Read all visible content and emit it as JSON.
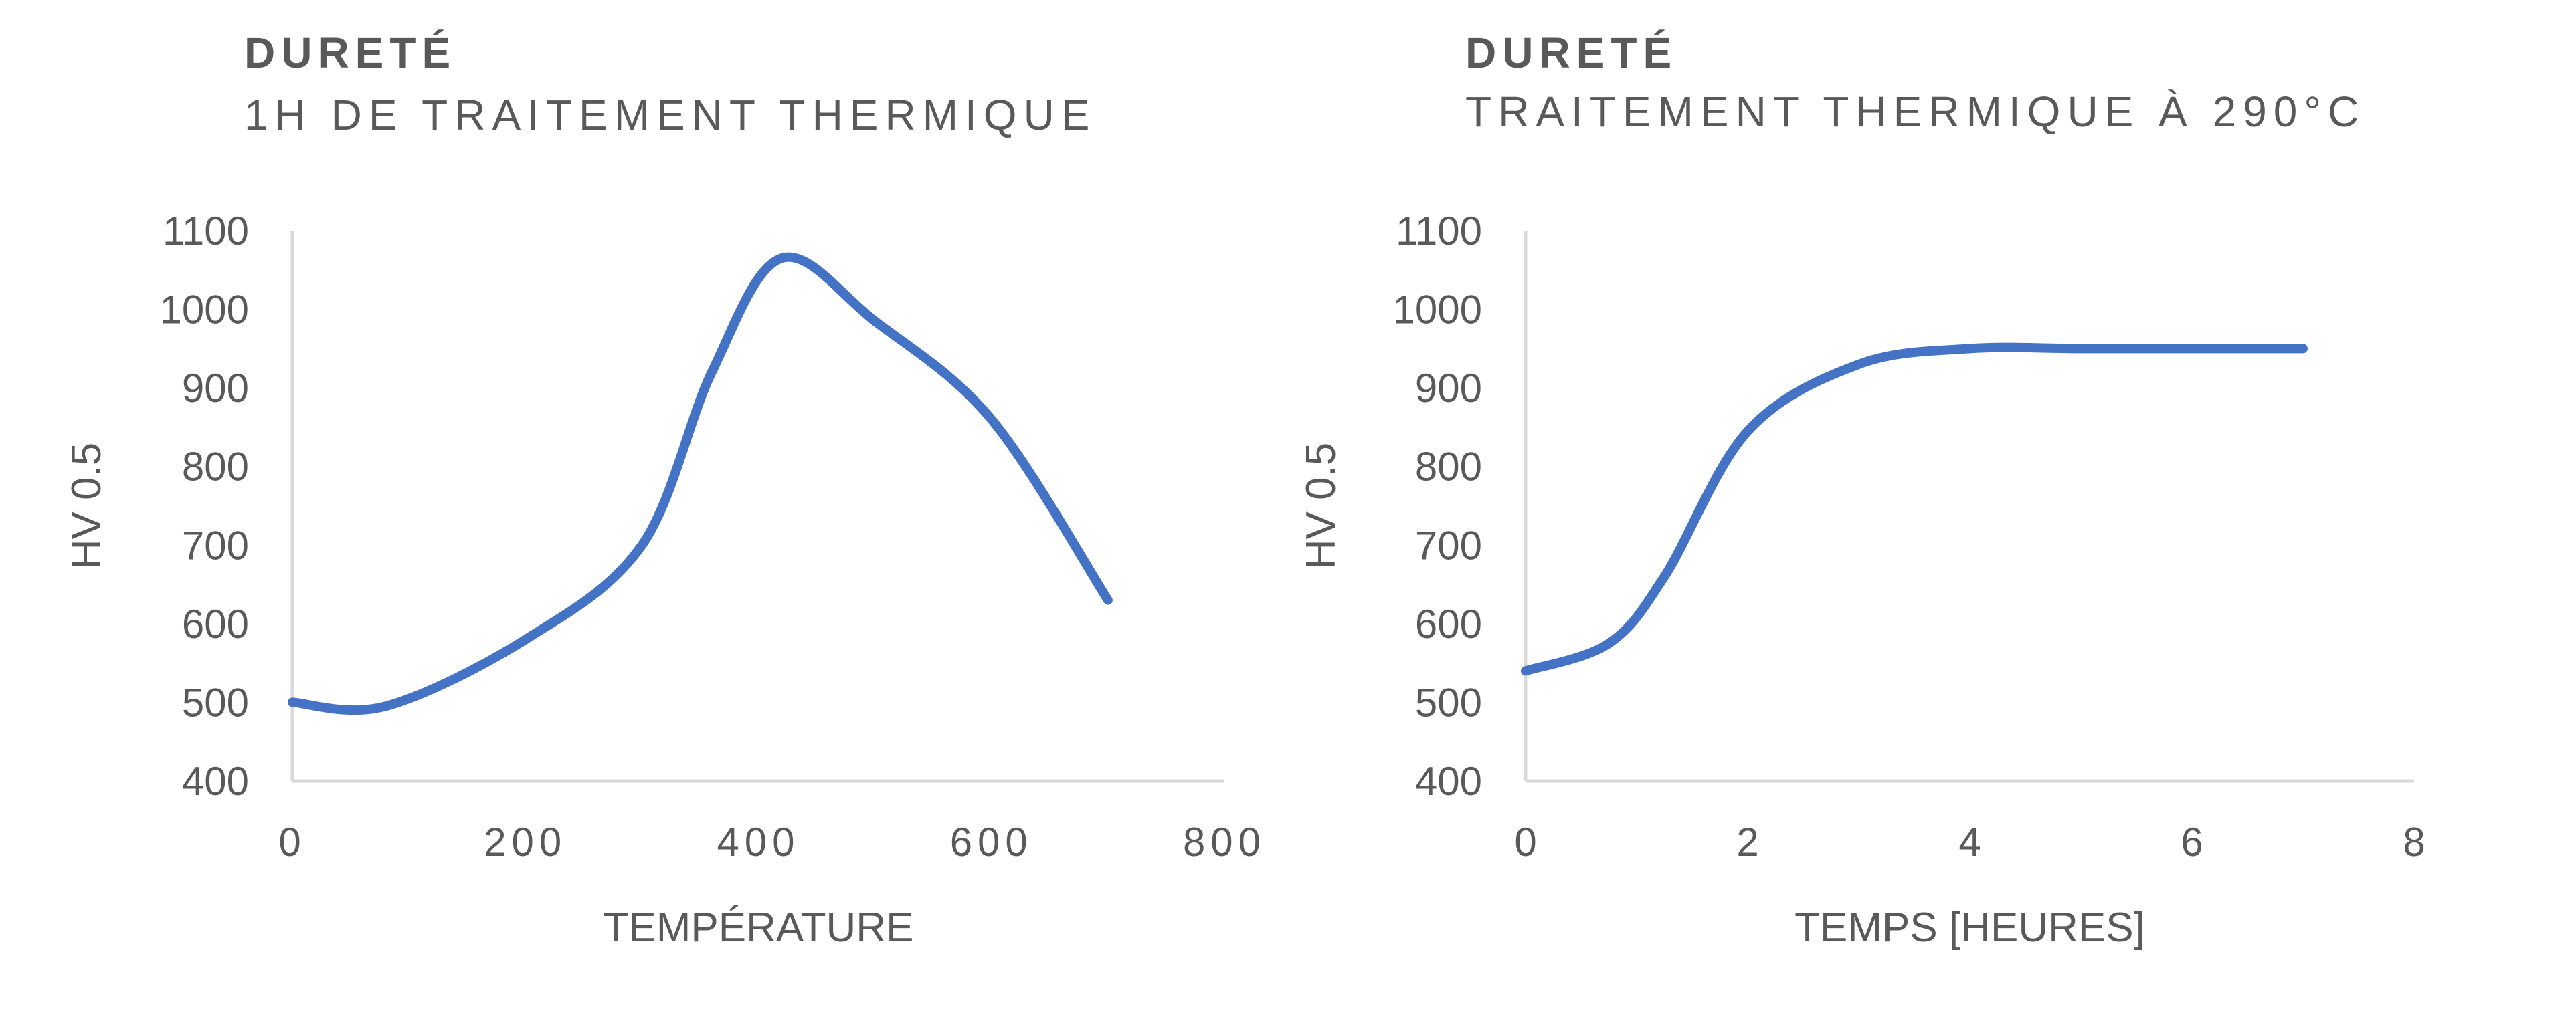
{
  "chart_data": [
    {
      "type": "line",
      "title": "DURETÉ",
      "subtitle": "1H DE TRAITEMENT THERMIQUE",
      "xlabel": "TEMPÉRATURE",
      "ylabel": "HV 0.5",
      "xlim": [
        0,
        800
      ],
      "ylim": [
        400,
        1100
      ],
      "xticks": [
        0,
        200,
        400,
        600,
        800
      ],
      "xtick_labels": [
        "0",
        "200",
        "400",
        "600",
        "800"
      ],
      "yticks": [
        400,
        500,
        600,
        700,
        800,
        900,
        1000,
        1100
      ],
      "ytick_labels": [
        "400",
        "500",
        "600",
        "700",
        "800",
        "900",
        "1000",
        "1100"
      ],
      "grid": false,
      "smooth": true,
      "series": [
        {
          "color": "#4472C4",
          "x": [
            0,
            80,
            200,
            300,
            360,
            420,
            500,
            600,
            700
          ],
          "y": [
            500,
            495,
            580,
            700,
            920,
            1065,
            985,
            860,
            630
          ]
        }
      ]
    },
    {
      "type": "line",
      "title": "DURETÉ",
      "subtitle": "TRAITEMENT THERMIQUE À 290°C",
      "xlabel": "TEMPS [HEURES]",
      "ylabel": "HV 0.5",
      "xlim": [
        0,
        8
      ],
      "ylim": [
        400,
        1100
      ],
      "xticks": [
        0,
        2,
        4,
        6,
        8
      ],
      "xtick_labels": [
        "0",
        "2",
        "4",
        "6",
        "8"
      ],
      "yticks": [
        400,
        500,
        600,
        700,
        800,
        900,
        1000,
        1100
      ],
      "ytick_labels": [
        "400",
        "500",
        "600",
        "700",
        "800",
        "900",
        "1000",
        "1100"
      ],
      "grid": false,
      "smooth": true,
      "series": [
        {
          "color": "#4472C4",
          "x": [
            0,
            0.75,
            1.25,
            2,
            3,
            4,
            5,
            6,
            7
          ],
          "y": [
            540,
            575,
            660,
            845,
            930,
            950,
            950,
            950,
            950
          ]
        }
      ]
    }
  ]
}
